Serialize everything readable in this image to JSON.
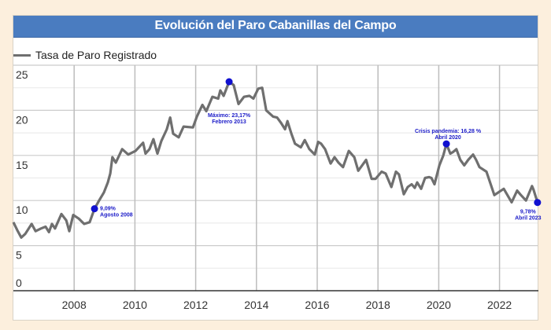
{
  "chart_data": {
    "type": "line",
    "title": "Evolución del Paro Cabanillas del Campo",
    "xlabel": "",
    "ylabel": "",
    "xlim": [
      2006,
      2023.3
    ],
    "ylim": [
      0,
      25
    ],
    "grid": true,
    "legend_position": "top-left",
    "x_ticks": [
      "2008",
      "2010",
      "2012",
      "2014",
      "2016",
      "2018",
      "2020",
      "2022"
    ],
    "y_ticks": [
      "0",
      "5",
      "10",
      "15",
      "20",
      "25"
    ],
    "series": [
      {
        "name": "Tasa de Paro Registrado",
        "color": "#6f6f6f",
        "x": [
          2006.0,
          2006.13,
          2006.26,
          2006.39,
          2006.6,
          2006.73,
          2006.91,
          2007.06,
          2007.17,
          2007.27,
          2007.37,
          2007.58,
          2007.74,
          2007.84,
          2007.97,
          2008.15,
          2008.33,
          2008.51,
          2008.67,
          2008.82,
          2008.98,
          2009.11,
          2009.19,
          2009.26,
          2009.37,
          2009.58,
          2009.78,
          2010.02,
          2010.27,
          2010.35,
          2010.48,
          2010.61,
          2010.74,
          2010.87,
          2011.05,
          2011.16,
          2011.26,
          2011.44,
          2011.6,
          2011.91,
          2012.04,
          2012.22,
          2012.35,
          2012.55,
          2012.74,
          2012.81,
          2012.92,
          2013.1,
          2013.25,
          2013.41,
          2013.59,
          2013.77,
          2013.9,
          2014.06,
          2014.19,
          2014.32,
          2014.55,
          2014.68,
          2014.81,
          2014.94,
          2015.02,
          2015.15,
          2015.27,
          2015.46,
          2015.59,
          2015.74,
          2015.92,
          2016.03,
          2016.13,
          2016.26,
          2016.44,
          2016.57,
          2016.7,
          2016.85,
          2017.04,
          2017.22,
          2017.35,
          2017.48,
          2017.61,
          2017.79,
          2017.92,
          2018.12,
          2018.25,
          2018.44,
          2018.59,
          2018.69,
          2018.85,
          2018.98,
          2019.11,
          2019.21,
          2019.29,
          2019.42,
          2019.55,
          2019.68,
          2019.76,
          2019.86,
          2020.02,
          2020.15,
          2020.25,
          2020.38,
          2020.48,
          2020.58,
          2020.71,
          2020.84,
          2020.97,
          2021.13,
          2021.23,
          2021.34,
          2021.57,
          2021.83,
          2022.14,
          2022.4,
          2022.58,
          2022.68,
          2022.87,
          2023.07,
          2023.12,
          2023.25
        ],
        "y": [
          7.6,
          6.7,
          5.9,
          6.3,
          7.4,
          6.6,
          6.9,
          7.1,
          6.5,
          7.4,
          6.9,
          8.5,
          7.8,
          6.6,
          8.4,
          8.0,
          7.4,
          7.6,
          9.09,
          10.0,
          10.9,
          12.0,
          13.0,
          14.8,
          14.2,
          15.7,
          15.1,
          15.5,
          16.4,
          15.2,
          15.7,
          16.8,
          15.2,
          16.6,
          17.9,
          19.2,
          17.4,
          17.0,
          18.2,
          18.1,
          19.3,
          20.6,
          19.9,
          21.5,
          21.3,
          22.2,
          21.6,
          23.17,
          22.8,
          20.7,
          21.5,
          21.6,
          21.3,
          22.4,
          22.5,
          20.0,
          19.3,
          19.2,
          18.6,
          17.9,
          18.8,
          17.4,
          16.3,
          15.9,
          16.7,
          15.7,
          15.1,
          16.5,
          16.3,
          15.7,
          14.1,
          14.8,
          14.2,
          13.7,
          15.5,
          14.8,
          13.3,
          13.9,
          14.5,
          12.4,
          12.4,
          13.2,
          13.0,
          11.5,
          13.2,
          12.9,
          10.7,
          11.5,
          11.8,
          11.4,
          12.0,
          11.3,
          12.5,
          12.6,
          12.5,
          11.8,
          13.9,
          15.0,
          16.28,
          15.2,
          15.4,
          15.7,
          14.5,
          13.9,
          14.5,
          15.1,
          14.5,
          13.7,
          13.2,
          10.6,
          11.3,
          9.8,
          11.1,
          10.7,
          10.0,
          11.6,
          11.2,
          9.78
        ]
      }
    ],
    "annotations": [
      {
        "x": 2008.67,
        "y": 9.09,
        "line1": "9,09%",
        "line2": "Agosto 2008",
        "placement": "right"
      },
      {
        "x": 2013.1,
        "y": 23.17,
        "line1": "Máximo: 23,17%",
        "line2": "Febrero 2013",
        "placement": "below"
      },
      {
        "x": 2020.25,
        "y": 16.28,
        "line1": "Crisis pandemia: 16,28 %",
        "line2": "Abril 2020",
        "placement": "above"
      },
      {
        "x": 2023.25,
        "y": 9.78,
        "line1": "9,78%",
        "line2": "Abril 2023",
        "placement": "below-left"
      }
    ],
    "marker_color": "#1010d0"
  }
}
